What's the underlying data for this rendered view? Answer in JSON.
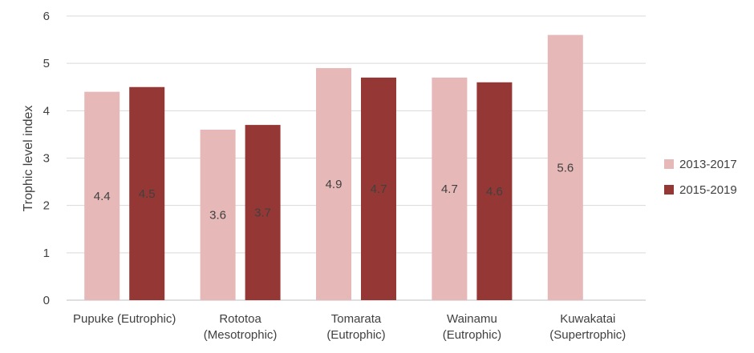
{
  "chart_data": {
    "type": "bar",
    "ylabel": "Trophic level index",
    "ylim": [
      0,
      6
    ],
    "yticks": [
      0,
      1,
      2,
      3,
      4,
      5,
      6
    ],
    "grid": true,
    "legend_position": "right",
    "categories": [
      [
        "Pupuke (Eutrophic)"
      ],
      [
        "Rototoa",
        "(Mesotrophic)"
      ],
      [
        "Tomarata",
        "(Eutrophic)"
      ],
      [
        "Wainamu",
        "(Eutrophic)"
      ],
      [
        "Kuwakatai",
        "(Supertrophic)"
      ]
    ],
    "series": [
      {
        "name": "2013-2017",
        "color": "#e6b8b7",
        "values": [
          4.4,
          3.6,
          4.9,
          4.7,
          5.6
        ]
      },
      {
        "name": "2015-2019",
        "color": "#953735",
        "values": [
          4.5,
          3.7,
          4.7,
          4.6,
          null
        ]
      }
    ]
  }
}
